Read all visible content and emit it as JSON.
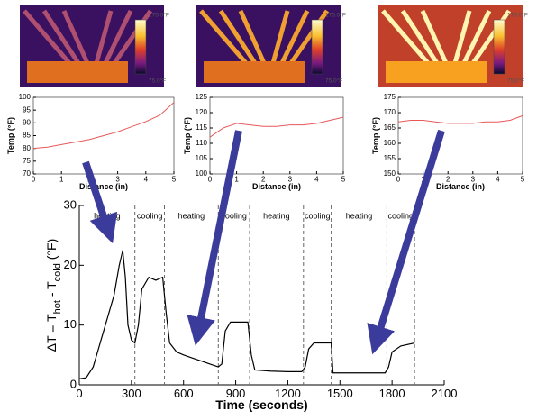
{
  "thermal_images": [
    {
      "max_label": "175.0°F",
      "min_label": "75.0°F"
    },
    {
      "max_label": "175.0°F",
      "min_label": "75.0°F"
    },
    {
      "max_label": "175.0°F",
      "min_label": "75.0°F"
    }
  ],
  "chart_data": [
    {
      "type": "line",
      "xlabel": "Distance (in)",
      "ylabel": [
        "Temp (°F)"
      ],
      "xlim": [
        0,
        5
      ],
      "xticks": [
        0,
        1,
        2,
        3,
        4,
        5
      ],
      "ylim": [
        70,
        100
      ],
      "yticks": [
        70,
        75,
        80,
        85,
        90,
        95,
        100
      ],
      "series": [
        {
          "color": "#e8585a",
          "x": [
            0,
            0.5,
            1,
            1.5,
            2,
            2.5,
            3,
            3.5,
            4,
            4.5,
            5
          ],
          "values": [
            80,
            80.5,
            81.5,
            82.5,
            83.5,
            85,
            86.5,
            88.5,
            90.5,
            93,
            98
          ]
        }
      ]
    },
    {
      "type": "line",
      "xlabel": "Distance (in)",
      "ylabel": [
        "Temp (°F)"
      ],
      "xlim": [
        0,
        5
      ],
      "xticks": [
        0,
        1,
        2,
        3,
        4,
        5
      ],
      "ylim": [
        100,
        125
      ],
      "yticks": [
        100,
        105,
        110,
        115,
        120,
        125
      ],
      "series": [
        {
          "color": "#e8585a",
          "x": [
            0,
            0.5,
            1,
            1.5,
            2,
            2.5,
            3,
            3.5,
            4,
            4.5,
            5
          ],
          "values": [
            112,
            115,
            116.5,
            116,
            115.5,
            115.5,
            116,
            116,
            116.5,
            117.5,
            118.5
          ]
        }
      ]
    },
    {
      "type": "line",
      "xlabel": "Distance (in)",
      "ylabel": [
        "Temp (°F)"
      ],
      "xlim": [
        0,
        5
      ],
      "xticks": [
        0,
        1,
        2,
        3,
        4,
        5
      ],
      "ylim": [
        150,
        175
      ],
      "yticks": [
        150,
        155,
        160,
        165,
        170,
        175
      ],
      "series": [
        {
          "color": "#e8585a",
          "x": [
            0,
            0.5,
            1,
            1.5,
            2,
            2.5,
            3,
            3.5,
            4,
            4.5,
            5
          ],
          "values": [
            167,
            167.5,
            167.5,
            167,
            166.5,
            166.5,
            166.5,
            167,
            167,
            167.5,
            169
          ]
        }
      ]
    },
    {
      "type": "line",
      "xlabel": "Time (seconds)",
      "ylabel": [
        "ΔT = T",
        "hot",
        " - T",
        "cold",
        " (°F)"
      ],
      "xlim": [
        0,
        2100
      ],
      "xticks": [
        0,
        300,
        600,
        900,
        1200,
        1500,
        1800,
        2100
      ],
      "ylim": [
        0,
        30
      ],
      "yticks": [
        0,
        10,
        20,
        30
      ],
      "phases": [
        {
          "label": "heating",
          "start": 0,
          "end": 320
        },
        {
          "label": "cooling",
          "start": 320,
          "end": 490
        },
        {
          "label": "heating",
          "start": 490,
          "end": 800
        },
        {
          "label": "cooling",
          "start": 800,
          "end": 980
        },
        {
          "label": "heating",
          "start": 980,
          "end": 1290
        },
        {
          "label": "cooling",
          "start": 1290,
          "end": 1450
        },
        {
          "label": "heating",
          "start": 1450,
          "end": 1770
        },
        {
          "label": "cooling",
          "start": 1770,
          "end": 1930
        }
      ],
      "series": [
        {
          "color": "#000000",
          "x": [
            0,
            40,
            80,
            120,
            160,
            200,
            230,
            250,
            265,
            280,
            300,
            320,
            340,
            360,
            400,
            440,
            480,
            500,
            520,
            560,
            600,
            650,
            700,
            750,
            800,
            820,
            840,
            870,
            920,
            970,
            990,
            1010,
            1100,
            1200,
            1280,
            1300,
            1320,
            1350,
            1450,
            1460,
            1550,
            1650,
            1760,
            1780,
            1800,
            1850,
            1930
          ],
          "values": [
            1,
            1.2,
            3,
            7,
            11,
            15,
            20,
            22.5,
            18,
            10,
            7.5,
            7,
            10,
            16,
            18,
            17.5,
            18,
            12,
            7,
            5.5,
            5,
            4.5,
            4,
            3.5,
            3,
            3.5,
            9,
            10.5,
            10.5,
            10.5,
            5,
            2.5,
            2.3,
            2.2,
            2.2,
            3,
            6,
            7,
            7,
            2,
            2,
            2,
            2,
            3,
            5.5,
            6.5,
            7
          ]
        }
      ]
    }
  ]
}
